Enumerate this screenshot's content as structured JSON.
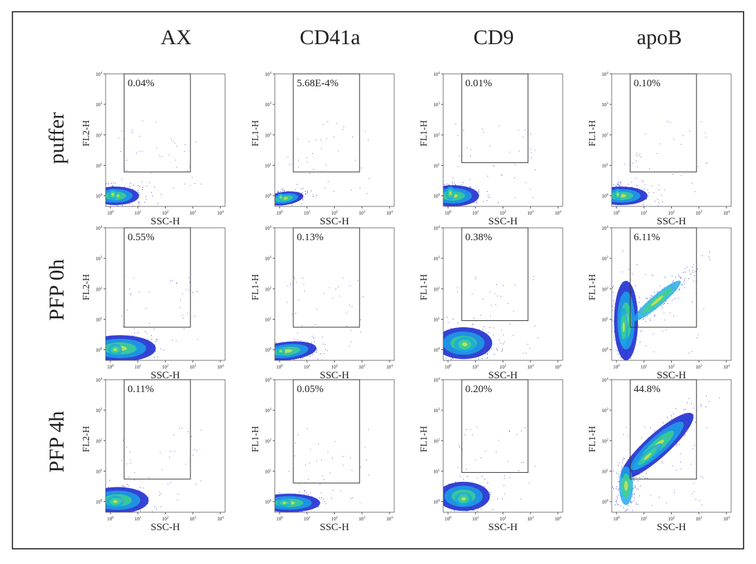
{
  "figure": {
    "columns": [
      "AX",
      "CD41a",
      "CD9",
      "apoB"
    ],
    "rows": [
      "puffer",
      "PFP 0h",
      "PFP 4h"
    ],
    "tick_base": "10",
    "tick_exponents": [
      "0",
      "1",
      "2",
      "3",
      "4"
    ],
    "panels": [
      [
        {
          "y_label": "FL2-H",
          "x_label": "SSC-H",
          "gate": "0.04%"
        },
        {
          "y_label": "FL1-H",
          "x_label": "SSC-H",
          "gate": "5.68E-4%"
        },
        {
          "y_label": "FL1-H",
          "x_label": "SSC-H",
          "gate": "0.01%"
        },
        {
          "y_label": "FL1-H",
          "x_label": "SSC-H",
          "gate": "0.10%"
        }
      ],
      [
        {
          "y_label": "FL2-H",
          "x_label": "SSC-H",
          "gate": "0.55%"
        },
        {
          "y_label": "FL1-H",
          "x_label": "SSC-H",
          "gate": "0.13%"
        },
        {
          "y_label": "FL1-H",
          "x_label": "SSC-H",
          "gate": "0.38%"
        },
        {
          "y_label": "FL1-H",
          "x_label": "SSC-H",
          "gate": "6.11%"
        }
      ],
      [
        {
          "y_label": "FL2-H",
          "x_label": "SSC-H",
          "gate": "0.11%"
        },
        {
          "y_label": "FL1-H",
          "x_label": "SSC-H",
          "gate": "0.05%"
        },
        {
          "y_label": "FL1-H",
          "x_label": "SSC-H",
          "gate": "0.20%"
        },
        {
          "y_label": "FL1-H",
          "x_label": "SSC-H",
          "gate": "44.8%"
        }
      ]
    ]
  }
}
